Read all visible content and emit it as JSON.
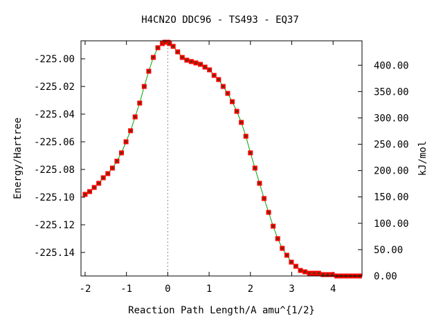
{
  "chart_data": {
    "type": "scatter",
    "title": "H4CN2O   DDC96 - TS493 - EQ37",
    "xlabel": "Reaction Path Length/A amu^{1/2}",
    "ylabel": "Energy/Hartree",
    "ylabel_right": "kJ/mol",
    "xlim": [
      -2.1,
      4.7
    ],
    "ylim": [
      -225.157,
      -224.987
    ],
    "ylim_right": [
      0.0,
      446.3
    ],
    "x_ticks": [
      -2,
      -1,
      0,
      1,
      2,
      3,
      4
    ],
    "y_ticks": [
      -225.0,
      -225.02,
      -225.04,
      -225.06,
      -225.08,
      -225.1,
      -225.12,
      -225.14
    ],
    "y_tick_labels": [
      "-225.00",
      "-225.02",
      "-225.04",
      "-225.06",
      "-225.08",
      "-225.10",
      "-225.12",
      "-225.14"
    ],
    "y_right_ticks": [
      0,
      50,
      100,
      150,
      200,
      250,
      300,
      350,
      400
    ],
    "y_right_tick_labels": [
      "0.00",
      "50.00",
      "100.00",
      "150.00",
      "200.00",
      "250.00",
      "300.00",
      "350.00",
      "400.00"
    ],
    "ts_marker_x": 0,
    "grid": false,
    "colors": {
      "line": "#00a000",
      "marker": "#ff0000",
      "marker_center": "#4a3a00",
      "ts_line": "#888888"
    },
    "series": [
      {
        "x": [
          -2.0,
          -1.89,
          -1.78,
          -1.67,
          -1.56,
          -1.45,
          -1.34,
          -1.23,
          -1.12,
          -1.01,
          -0.9,
          -0.79,
          -0.68,
          -0.57,
          -0.46,
          -0.35,
          -0.24,
          -0.13,
          -0.07,
          0.0,
          0.04,
          0.13,
          0.24,
          0.35,
          0.46,
          0.57,
          0.68,
          0.79,
          0.9,
          1.01,
          1.12,
          1.23,
          1.34,
          1.45,
          1.56,
          1.67,
          1.78,
          1.89,
          2.0,
          2.11,
          2.22,
          2.33,
          2.44,
          2.55,
          2.66,
          2.77,
          2.88,
          2.99,
          3.1,
          3.21,
          3.32,
          3.43,
          3.54,
          3.65,
          3.76,
          3.87,
          3.98,
          4.09,
          4.2,
          4.31,
          4.42,
          4.53,
          4.64
        ],
        "y": [
          -225.098,
          -225.096,
          -225.093,
          -225.09,
          -225.086,
          -225.083,
          -225.079,
          -225.074,
          -225.068,
          -225.06,
          -225.052,
          -225.042,
          -225.032,
          -225.02,
          -225.009,
          -224.999,
          -224.992,
          -224.989,
          -224.988,
          -224.988,
          -224.989,
          -224.991,
          -224.995,
          -224.999,
          -225.001,
          -225.002,
          -225.003,
          -225.004,
          -225.006,
          -225.008,
          -225.012,
          -225.015,
          -225.02,
          -225.025,
          -225.031,
          -225.038,
          -225.046,
          -225.056,
          -225.068,
          -225.079,
          -225.09,
          -225.101,
          -225.111,
          -225.121,
          -225.13,
          -225.137,
          -225.142,
          -225.147,
          -225.15,
          -225.153,
          -225.154,
          -225.155,
          -225.155,
          -225.155,
          -225.156,
          -225.156,
          -225.156,
          -225.157,
          -225.157,
          -225.157,
          -225.157,
          -225.157,
          -225.157
        ]
      }
    ]
  }
}
